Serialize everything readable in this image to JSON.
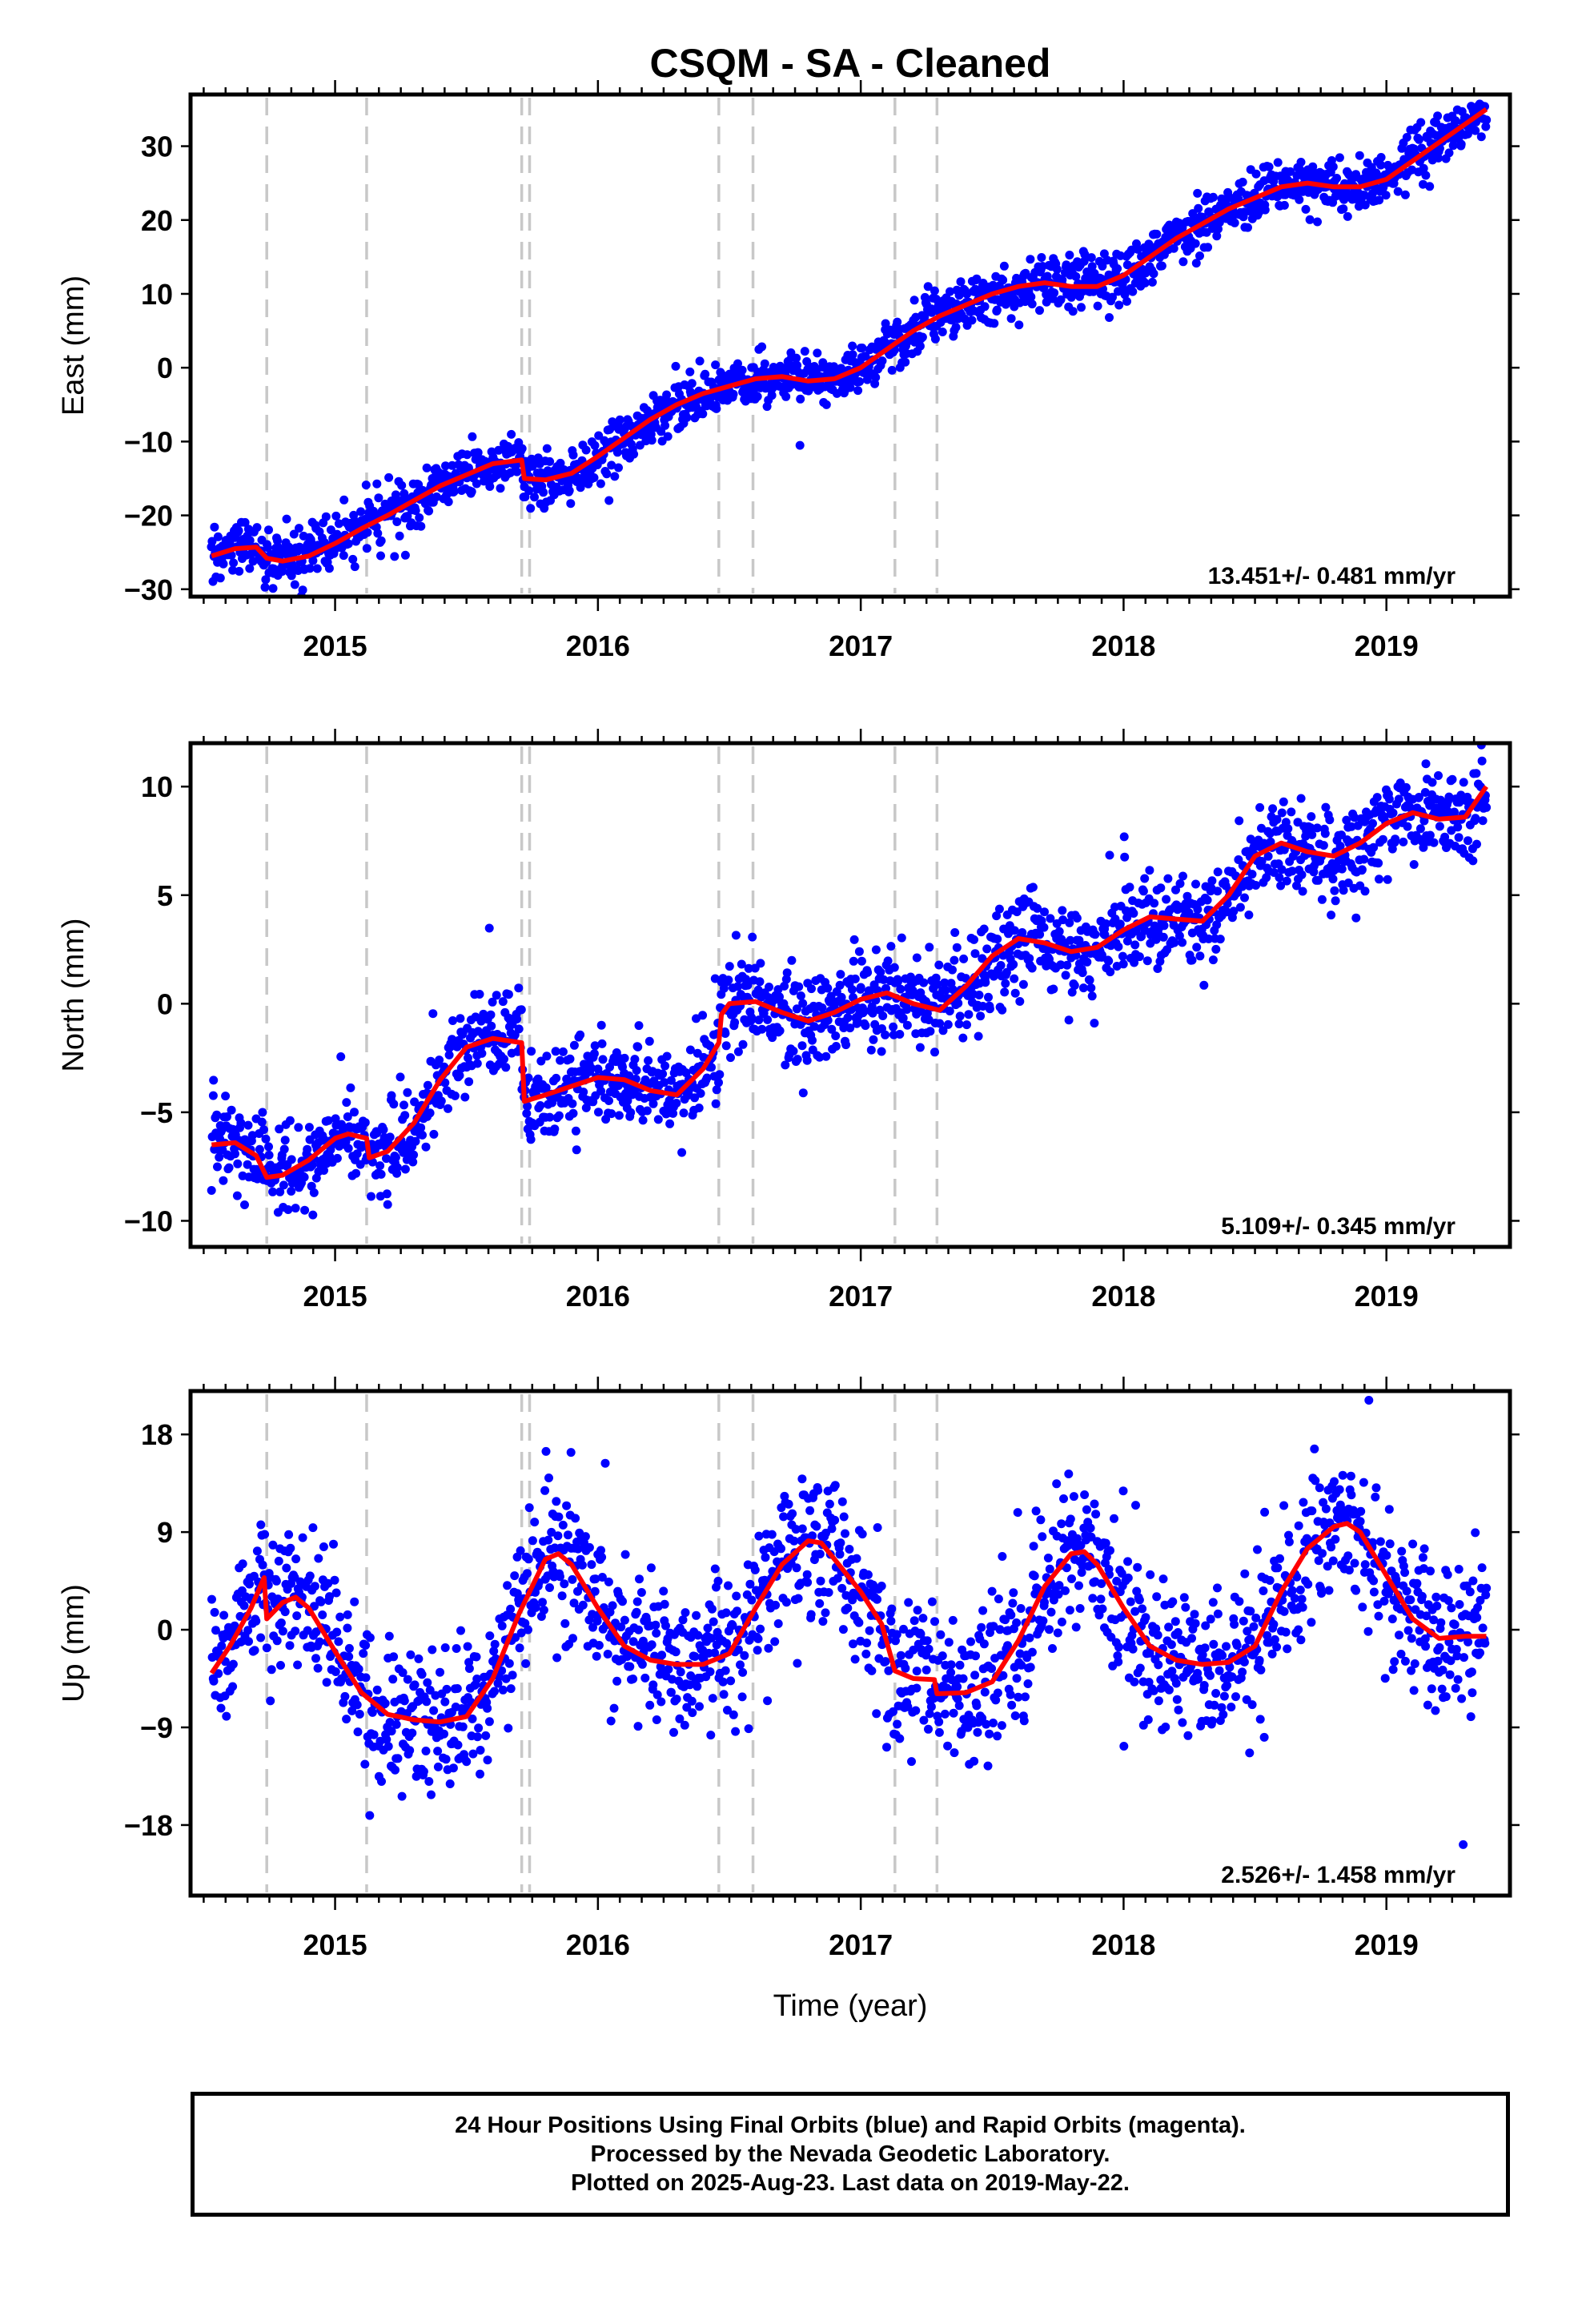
{
  "title": "CSQM  - SA - Cleaned",
  "colors": {
    "final_orbits": "#0000ff",
    "rapid_orbits": "#ff00ff",
    "model_fit": "#ff0000",
    "step_lines": "#c8c8c8"
  },
  "chart_data": [
    {
      "type": "scatter",
      "component": "east",
      "ylabel": "East (mm)",
      "xlabel": "",
      "xlim": [
        2014.45,
        2019.47
      ],
      "ylim": [
        -31,
        37
      ],
      "yticks": [
        -30,
        -20,
        -10,
        0,
        10,
        20,
        30
      ],
      "xticks": [
        2015,
        2016,
        2017,
        2018,
        2019
      ],
      "velocity_label": "13.451+/- 0.481 mm/yr",
      "step_epochs": [
        2014.74,
        2015.12,
        2015.71,
        2015.74,
        2016.46,
        2016.59,
        2017.13,
        2017.29
      ],
      "fit": {
        "x": [
          2014.53,
          2014.62,
          2014.7,
          2014.74,
          2014.8,
          2014.9,
          2015.0,
          2015.1,
          2015.2,
          2015.3,
          2015.4,
          2015.5,
          2015.6,
          2015.71,
          2015.72,
          2015.8,
          2015.9,
          2016.0,
          2016.1,
          2016.2,
          2016.3,
          2016.4,
          2016.5,
          2016.6,
          2016.7,
          2016.8,
          2016.9,
          2017.0,
          2017.1,
          2017.2,
          2017.3,
          2017.4,
          2017.5,
          2017.6,
          2017.7,
          2017.8,
          2017.9,
          2018.0,
          2018.1,
          2018.2,
          2018.3,
          2018.4,
          2018.5,
          2018.6,
          2018.7,
          2018.8,
          2018.9,
          2019.0,
          2019.1,
          2019.2,
          2019.3,
          2019.38
        ],
        "y": [
          -25.5,
          -24.5,
          -24.3,
          -25.8,
          -26.2,
          -25.5,
          -23.8,
          -21.8,
          -20.0,
          -18.0,
          -16.0,
          -14.5,
          -13.0,
          -12.5,
          -15.0,
          -15.2,
          -14.3,
          -12.0,
          -9.5,
          -7.0,
          -5.0,
          -3.5,
          -2.5,
          -1.5,
          -1.2,
          -1.8,
          -1.5,
          0.0,
          2.5,
          5.0,
          7.0,
          8.5,
          10.0,
          11.0,
          11.5,
          11.0,
          11.0,
          12.5,
          15.0,
          17.5,
          19.5,
          21.5,
          23.0,
          24.5,
          25.0,
          24.5,
          24.5,
          25.5,
          28.0,
          30.5,
          33.0,
          35.0
        ]
      },
      "scatter_stats": {
        "noise_sd_mm": 1.8,
        "n_points": 1750
      }
    },
    {
      "type": "scatter",
      "component": "north",
      "ylabel": "North (mm)",
      "xlabel": "",
      "xlim": [
        2014.45,
        2019.47
      ],
      "ylim": [
        -11.2,
        12
      ],
      "yticks": [
        -10,
        -5,
        0,
        5,
        10
      ],
      "xticks": [
        2015,
        2016,
        2017,
        2018,
        2019
      ],
      "velocity_label": "5.109+/- 0.345 mm/yr",
      "step_epochs": [
        2014.74,
        2015.12,
        2015.71,
        2015.74,
        2016.46,
        2016.59,
        2017.13,
        2017.29
      ],
      "fit": {
        "x": [
          2014.53,
          2014.62,
          2014.7,
          2014.74,
          2014.8,
          2014.9,
          2015.0,
          2015.05,
          2015.12,
          2015.13,
          2015.2,
          2015.3,
          2015.4,
          2015.5,
          2015.6,
          2015.71,
          2015.72,
          2015.8,
          2015.9,
          2016.0,
          2016.1,
          2016.2,
          2016.3,
          2016.4,
          2016.46,
          2016.47,
          2016.5,
          2016.6,
          2016.7,
          2016.8,
          2016.9,
          2017.0,
          2017.1,
          2017.2,
          2017.3,
          2017.4,
          2017.5,
          2017.6,
          2017.7,
          2017.8,
          2017.9,
          2018.0,
          2018.1,
          2018.2,
          2018.3,
          2018.4,
          2018.5,
          2018.6,
          2018.7,
          2018.8,
          2018.9,
          2019.0,
          2019.1,
          2019.2,
          2019.3,
          2019.38
        ],
        "y": [
          -6.5,
          -6.4,
          -7.0,
          -8.0,
          -7.9,
          -7.2,
          -6.2,
          -6.0,
          -6.2,
          -7.1,
          -6.8,
          -5.5,
          -3.5,
          -2.0,
          -1.6,
          -1.8,
          -4.5,
          -4.2,
          -3.8,
          -3.4,
          -3.5,
          -4.0,
          -4.2,
          -3.0,
          -1.8,
          -0.5,
          0.0,
          0.1,
          -0.4,
          -0.8,
          -0.4,
          0.2,
          0.5,
          0.0,
          -0.3,
          0.8,
          2.2,
          3.0,
          2.8,
          2.4,
          2.6,
          3.4,
          4.0,
          3.9,
          3.8,
          5.0,
          6.8,
          7.4,
          7.0,
          6.8,
          7.4,
          8.3,
          8.8,
          8.5,
          8.6,
          10.0
        ]
      },
      "scatter_stats": {
        "noise_sd_mm": 1.05,
        "n_points": 1750
      }
    },
    {
      "type": "scatter",
      "component": "up",
      "ylabel": "Up (mm)",
      "xlabel": "Time (year)",
      "xlim": [
        2014.45,
        2019.47
      ],
      "ylim": [
        -24.5,
        22
      ],
      "yticks": [
        -18,
        -9,
        0,
        9,
        18
      ],
      "xticks": [
        2015,
        2016,
        2017,
        2018,
        2019
      ],
      "velocity_label": "2.526+/- 1.458 mm/yr",
      "step_epochs": [
        2014.74,
        2015.12,
        2015.71,
        2015.74,
        2016.46,
        2016.59,
        2017.13,
        2017.29
      ],
      "fit": {
        "x": [
          2014.53,
          2014.6,
          2014.68,
          2014.73,
          2014.74,
          2014.8,
          2014.85,
          2014.9,
          2015.0,
          2015.1,
          2015.2,
          2015.3,
          2015.4,
          2015.5,
          2015.6,
          2015.7,
          2015.8,
          2015.85,
          2015.9,
          2016.0,
          2016.1,
          2016.2,
          2016.3,
          2016.4,
          2016.5,
          2016.6,
          2016.7,
          2016.8,
          2016.85,
          2016.9,
          2017.0,
          2017.08,
          2017.13,
          2017.2,
          2017.28,
          2017.29,
          2017.4,
          2017.5,
          2017.6,
          2017.7,
          2017.8,
          2017.85,
          2017.9,
          2018.0,
          2018.1,
          2018.2,
          2018.3,
          2018.4,
          2018.5,
          2018.6,
          2018.7,
          2018.8,
          2018.85,
          2018.9,
          2019.0,
          2019.1,
          2019.2,
          2019.3,
          2019.38
        ],
        "y": [
          -4.0,
          -1.5,
          2.0,
          4.8,
          1.0,
          2.5,
          3.0,
          2.0,
          -2.0,
          -5.8,
          -7.8,
          -8.3,
          -8.5,
          -8.0,
          -4.5,
          1.5,
          6.5,
          7.0,
          6.0,
          2.0,
          -1.5,
          -2.8,
          -3.2,
          -3.2,
          -2.2,
          2.0,
          6.0,
          8.2,
          8.0,
          6.5,
          3.5,
          0.5,
          -3.8,
          -4.5,
          -4.6,
          -5.9,
          -5.8,
          -4.8,
          -1.0,
          4.0,
          7.0,
          7.2,
          6.0,
          2.0,
          -1.5,
          -2.8,
          -3.2,
          -3.0,
          -1.5,
          3.5,
          7.5,
          9.5,
          9.8,
          9.0,
          5.0,
          1.0,
          -0.8,
          -0.6,
          -0.6
        ]
      },
      "scatter_stats": {
        "noise_sd_mm": 3.4,
        "n_points": 1750
      }
    }
  ],
  "footer": {
    "line1": "24 Hour Positions Using Final Orbits (blue) and Rapid Orbits (magenta).",
    "line2": "Processed by the Nevada Geodetic Laboratory.",
    "line3": "Plotted on 2025-Aug-23. Last data on 2019-May-22."
  }
}
